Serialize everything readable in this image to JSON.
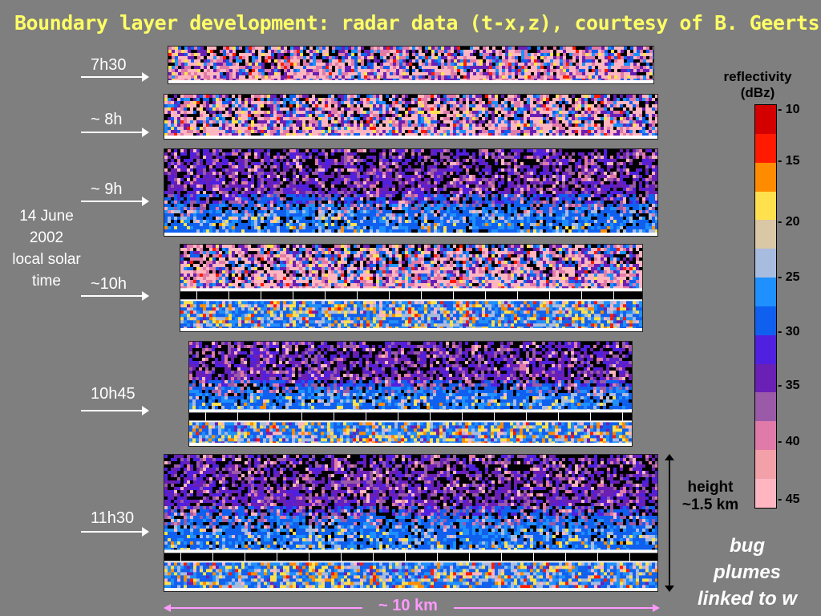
{
  "title": "Boundary layer development: radar data (t-x,z), courtesy of B. Geerts",
  "times": [
    "7h30",
    "~ 8h",
    "~ 9h",
    "~10h",
    "10h45",
    "11h30"
  ],
  "date": {
    "line1": "14 June",
    "line2": "2002",
    "line3": "local solar",
    "line4": "time"
  },
  "legend": {
    "title_line1": "reflectivity",
    "title_line2": "(dBz)",
    "ticks": [
      "- 10",
      "- 15",
      "- 20",
      "- 25",
      "- 30",
      "- 35",
      "- 40",
      "- 45"
    ],
    "colors": [
      "#d40000",
      "#ff1a00",
      "#ff8c00",
      "#ffe14d",
      "#d9c7a5",
      "#a8bce0",
      "#1e90ff",
      "#1060f0",
      "#5020e0",
      "#6a1fb5",
      "#9a5aa8",
      "#e07aa8",
      "#f4a0a8",
      "#ffb6c1"
    ]
  },
  "height_note": {
    "line1": "height",
    "line2": "~1.5 km"
  },
  "bug_note": {
    "line1": "bug",
    "line2": "plumes",
    "line3": "linked to w"
  },
  "distance_label": "~ 10 km",
  "radar_palette": [
    "#ffb6c1",
    "#e07aa8",
    "#9a5aa8",
    "#6a1fb5",
    "#5020e0",
    "#1060f0",
    "#1e90ff",
    "#a8bce0",
    "#ffe14d",
    "#ff8c00",
    "#ff1a00",
    "#000000"
  ]
}
